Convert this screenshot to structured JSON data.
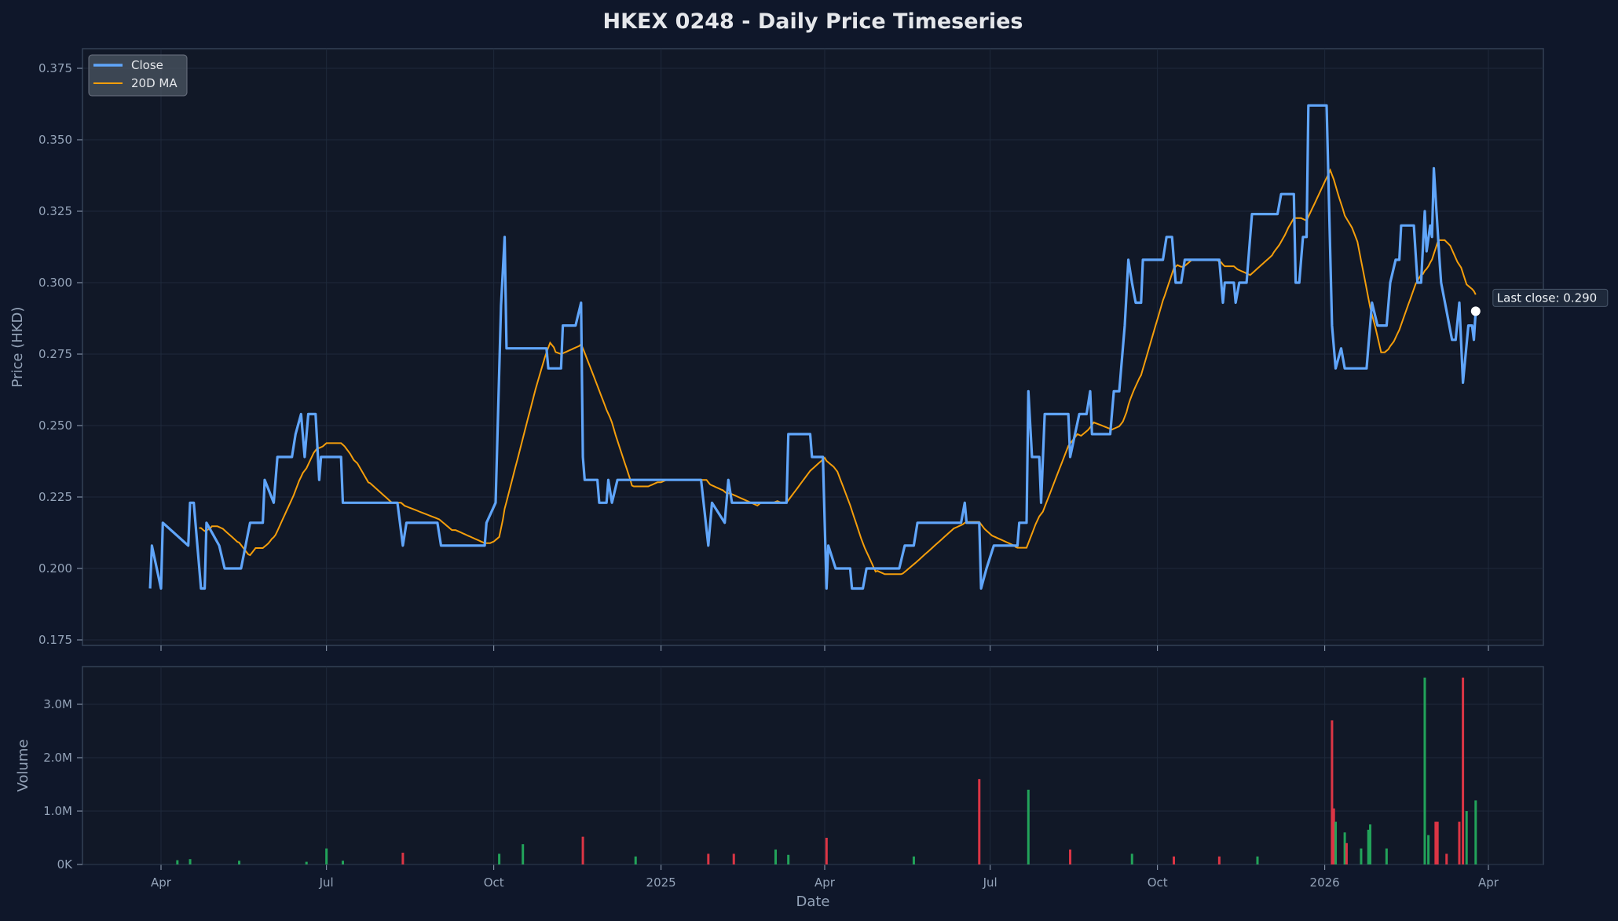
{
  "colors": {
    "background": "#0f172a",
    "plot_background": "#111827",
    "close": "#60a5fa",
    "ma": "#f59e0b",
    "up": "#22a35a",
    "down": "#dc3545",
    "grid": "#1e293b",
    "text": "#94a3b8"
  },
  "chart_data": [
    {
      "type": "line",
      "title": "HKEX 0248 - Daily Price Timeseries",
      "xlabel": "",
      "ylabel": "Price (HKD)",
      "ylim": [
        0.175,
        0.38
      ],
      "grid": true,
      "legend_position": "top-left",
      "yticks": [
        "0.175",
        "0.200",
        "0.225",
        "0.250",
        "0.275",
        "0.300",
        "0.325",
        "0.350",
        "0.375"
      ],
      "xticks": [
        {
          "date": "2024-04-01",
          "label": "Apr"
        },
        {
          "date": "2024-07-01",
          "label": "Jul"
        },
        {
          "date": "2024-10-01",
          "label": "Oct"
        },
        {
          "date": "2025-01-01",
          "label": "2025"
        },
        {
          "date": "2025-04-01",
          "label": "Apr"
        },
        {
          "date": "2025-07-01",
          "label": "Jul"
        },
        {
          "date": "2025-10-01",
          "label": "Oct"
        },
        {
          "date": "2026-01-01",
          "label": "2026"
        },
        {
          "date": "2026-04-01",
          "label": "Apr"
        }
      ],
      "series": [
        {
          "name": "Close",
          "points": [
            [
              "2024-03-26",
              0.193
            ],
            [
              "2024-03-27",
              0.208
            ],
            [
              "2024-04-01",
              0.193
            ],
            [
              "2024-04-02",
              0.216
            ],
            [
              "2024-04-16",
              0.208
            ],
            [
              "2024-04-17",
              0.223
            ],
            [
              "2024-04-19",
              0.223
            ],
            [
              "2024-04-23",
              0.193
            ],
            [
              "2024-04-25",
              0.193
            ],
            [
              "2024-04-26",
              0.216
            ],
            [
              "2024-05-03",
              0.208
            ],
            [
              "2024-05-06",
              0.2
            ],
            [
              "2024-05-15",
              0.2
            ],
            [
              "2024-05-20",
              0.216
            ],
            [
              "2024-05-27",
              0.216
            ],
            [
              "2024-05-28",
              0.231
            ],
            [
              "2024-06-02",
              0.223
            ],
            [
              "2024-06-04",
              0.239
            ],
            [
              "2024-06-12",
              0.239
            ],
            [
              "2024-06-14",
              0.247
            ],
            [
              "2024-06-17",
              0.254
            ],
            [
              "2024-06-19",
              0.239
            ],
            [
              "2024-06-21",
              0.254
            ],
            [
              "2024-06-25",
              0.254
            ],
            [
              "2024-06-27",
              0.231
            ],
            [
              "2024-06-28",
              0.239
            ],
            [
              "2024-07-09",
              0.239
            ],
            [
              "2024-07-10",
              0.223
            ],
            [
              "2024-08-09",
              0.223
            ],
            [
              "2024-08-12",
              0.208
            ],
            [
              "2024-08-14",
              0.216
            ],
            [
              "2024-08-31",
              0.216
            ],
            [
              "2024-09-02",
              0.208
            ],
            [
              "2024-09-26",
              0.208
            ],
            [
              "2024-09-27",
              0.216
            ],
            [
              "2024-10-02",
              0.223
            ],
            [
              "2024-10-05",
              0.292
            ],
            [
              "2024-10-07",
              0.316
            ],
            [
              "2024-10-08",
              0.277
            ],
            [
              "2024-10-30",
              0.277
            ],
            [
              "2024-10-31",
              0.27
            ],
            [
              "2024-11-07",
              0.27
            ],
            [
              "2024-11-08",
              0.285
            ],
            [
              "2024-11-15",
              0.285
            ],
            [
              "2024-11-18",
              0.293
            ],
            [
              "2024-11-19",
              0.239
            ],
            [
              "2024-11-20",
              0.231
            ],
            [
              "2024-11-27",
              0.231
            ],
            [
              "2024-11-28",
              0.223
            ],
            [
              "2024-12-02",
              0.223
            ],
            [
              "2024-12-03",
              0.231
            ],
            [
              "2024-12-05",
              0.223
            ],
            [
              "2024-12-08",
              0.231
            ],
            [
              "2025-01-23",
              0.231
            ],
            [
              "2025-01-27",
              0.208
            ],
            [
              "2025-01-29",
              0.223
            ],
            [
              "2025-02-05",
              0.216
            ],
            [
              "2025-02-07",
              0.231
            ],
            [
              "2025-02-09",
              0.223
            ],
            [
              "2025-03-11",
              0.223
            ],
            [
              "2025-03-12",
              0.247
            ],
            [
              "2025-03-24",
              0.247
            ],
            [
              "2025-03-25",
              0.239
            ],
            [
              "2025-03-31",
              0.239
            ],
            [
              "2025-04-02",
              0.193
            ],
            [
              "2025-04-03",
              0.208
            ],
            [
              "2025-04-07",
              0.2
            ],
            [
              "2025-04-15",
              0.2
            ],
            [
              "2025-04-16",
              0.193
            ],
            [
              "2025-04-22",
              0.193
            ],
            [
              "2025-04-24",
              0.2
            ],
            [
              "2025-05-12",
              0.2
            ],
            [
              "2025-05-15",
              0.208
            ],
            [
              "2025-05-20",
              0.208
            ],
            [
              "2025-05-22",
              0.216
            ],
            [
              "2025-06-15",
              0.216
            ],
            [
              "2025-06-17",
              0.223
            ],
            [
              "2025-06-18",
              0.216
            ],
            [
              "2025-06-25",
              0.216
            ],
            [
              "2025-06-26",
              0.193
            ],
            [
              "2025-06-29",
              0.2
            ],
            [
              "2025-07-03",
              0.208
            ],
            [
              "2025-07-16",
              0.208
            ],
            [
              "2025-07-17",
              0.216
            ],
            [
              "2025-07-21",
              0.216
            ],
            [
              "2025-07-22",
              0.262
            ],
            [
              "2025-07-24",
              0.239
            ],
            [
              "2025-07-28",
              0.239
            ],
            [
              "2025-07-29",
              0.223
            ],
            [
              "2025-07-31",
              0.254
            ],
            [
              "2025-08-13",
              0.254
            ],
            [
              "2025-08-14",
              0.239
            ],
            [
              "2025-08-19",
              0.254
            ],
            [
              "2025-08-23",
              0.254
            ],
            [
              "2025-08-25",
              0.262
            ],
            [
              "2025-08-26",
              0.247
            ],
            [
              "2025-09-05",
              0.247
            ],
            [
              "2025-09-07",
              0.262
            ],
            [
              "2025-09-10",
              0.262
            ],
            [
              "2025-09-13",
              0.285
            ],
            [
              "2025-09-15",
              0.308
            ],
            [
              "2025-09-17",
              0.3
            ],
            [
              "2025-09-19",
              0.293
            ],
            [
              "2025-09-22",
              0.293
            ],
            [
              "2025-09-23",
              0.308
            ],
            [
              "2025-10-04",
              0.308
            ],
            [
              "2025-10-06",
              0.316
            ],
            [
              "2025-10-09",
              0.316
            ],
            [
              "2025-10-11",
              0.3
            ],
            [
              "2025-10-14",
              0.3
            ],
            [
              "2025-10-16",
              0.308
            ],
            [
              "2025-11-04",
              0.308
            ],
            [
              "2025-11-06",
              0.293
            ],
            [
              "2025-11-07",
              0.3
            ],
            [
              "2025-11-12",
              0.3
            ],
            [
              "2025-11-13",
              0.293
            ],
            [
              "2025-11-15",
              0.3
            ],
            [
              "2025-11-19",
              0.3
            ],
            [
              "2025-11-22",
              0.324
            ],
            [
              "2025-12-06",
              0.324
            ],
            [
              "2025-12-08",
              0.331
            ],
            [
              "2025-12-15",
              0.331
            ],
            [
              "2025-12-16",
              0.3
            ],
            [
              "2025-12-18",
              0.3
            ],
            [
              "2025-12-20",
              0.316
            ],
            [
              "2025-12-22",
              0.316
            ],
            [
              "2025-12-23",
              0.362
            ],
            [
              "2026-01-02",
              0.362
            ],
            [
              "2026-01-05",
              0.285
            ],
            [
              "2026-01-07",
              0.27
            ],
            [
              "2026-01-10",
              0.277
            ],
            [
              "2026-01-12",
              0.27
            ],
            [
              "2026-01-24",
              0.27
            ],
            [
              "2026-01-27",
              0.293
            ],
            [
              "2026-01-30",
              0.285
            ],
            [
              "2026-02-04",
              0.285
            ],
            [
              "2026-02-06",
              0.3
            ],
            [
              "2026-02-09",
              0.308
            ],
            [
              "2026-02-11",
              0.308
            ],
            [
              "2026-02-12",
              0.32
            ],
            [
              "2026-02-19",
              0.32
            ],
            [
              "2026-02-21",
              0.3
            ],
            [
              "2026-02-23",
              0.3
            ],
            [
              "2026-02-25",
              0.325
            ],
            [
              "2026-02-26",
              0.311
            ],
            [
              "2026-02-28",
              0.32
            ],
            [
              "2026-03-01",
              0.316
            ],
            [
              "2026-03-02",
              0.34
            ],
            [
              "2026-03-05",
              0.309
            ],
            [
              "2026-03-06",
              0.3
            ],
            [
              "2026-03-09",
              0.29
            ],
            [
              "2026-03-12",
              0.28
            ],
            [
              "2026-03-14",
              0.28
            ],
            [
              "2026-03-16",
              0.293
            ],
            [
              "2026-03-18",
              0.265
            ],
            [
              "2026-03-21",
              0.285
            ],
            [
              "2026-03-23",
              0.285
            ],
            [
              "2026-03-24",
              0.28
            ],
            [
              "2026-03-25",
              0.29
            ]
          ]
        },
        {
          "name": "20D MA",
          "window": 20
        }
      ],
      "annotation": {
        "label": "Last close: 0.290",
        "date": "2026-03-25",
        "value": 0.29
      }
    },
    {
      "type": "bar",
      "xlabel": "Date",
      "ylabel": "Volume",
      "ylim": [
        0,
        3.7
      ],
      "unit": "M",
      "yticks": [
        {
          "value": 0,
          "label": "0K"
        },
        {
          "value": 1,
          "label": "1.0M"
        },
        {
          "value": 2,
          "label": "2.0M"
        },
        {
          "value": 3,
          "label": "3.0M"
        }
      ],
      "bars": [
        [
          "2024-04-10",
          0.08,
          "up"
        ],
        [
          "2024-04-17",
          0.1,
          "up"
        ],
        [
          "2024-05-14",
          0.07,
          "up"
        ],
        [
          "2024-06-20",
          0.05,
          "up"
        ],
        [
          "2024-07-01",
          0.3,
          "up"
        ],
        [
          "2024-07-10",
          0.07,
          "up"
        ],
        [
          "2024-08-12",
          0.22,
          "down"
        ],
        [
          "2024-10-04",
          0.2,
          "up"
        ],
        [
          "2024-10-17",
          0.38,
          "up"
        ],
        [
          "2024-11-19",
          0.52,
          "down"
        ],
        [
          "2024-12-18",
          0.15,
          "up"
        ],
        [
          "2025-01-27",
          0.2,
          "down"
        ],
        [
          "2025-02-10",
          0.2,
          "down"
        ],
        [
          "2025-03-05",
          0.28,
          "up"
        ],
        [
          "2025-03-12",
          0.18,
          "up"
        ],
        [
          "2025-04-02",
          0.5,
          "down"
        ],
        [
          "2025-05-20",
          0.15,
          "up"
        ],
        [
          "2025-06-25",
          1.6,
          "down"
        ],
        [
          "2025-07-22",
          1.4,
          "up"
        ],
        [
          "2025-08-14",
          0.28,
          "down"
        ],
        [
          "2025-09-17",
          0.2,
          "up"
        ],
        [
          "2025-10-10",
          0.15,
          "down"
        ],
        [
          "2025-11-04",
          0.15,
          "down"
        ],
        [
          "2025-11-25",
          0.15,
          "up"
        ],
        [
          "2026-01-05",
          2.7,
          "down"
        ],
        [
          "2026-01-06",
          1.05,
          "down"
        ],
        [
          "2026-01-07",
          0.8,
          "up"
        ],
        [
          "2026-01-12",
          0.6,
          "up"
        ],
        [
          "2026-01-13",
          0.4,
          "down"
        ],
        [
          "2026-01-21",
          0.3,
          "up"
        ],
        [
          "2026-01-25",
          0.65,
          "up"
        ],
        [
          "2026-01-26",
          0.75,
          "up"
        ],
        [
          "2026-02-04",
          0.3,
          "up"
        ],
        [
          "2026-02-25",
          3.5,
          "up"
        ],
        [
          "2026-02-27",
          0.55,
          "up"
        ],
        [
          "2026-03-03",
          0.8,
          "down"
        ],
        [
          "2026-03-04",
          0.8,
          "down"
        ],
        [
          "2026-03-09",
          0.2,
          "down"
        ],
        [
          "2026-03-16",
          0.8,
          "down"
        ],
        [
          "2026-03-18",
          3.5,
          "down"
        ],
        [
          "2026-03-20",
          1.0,
          "up"
        ],
        [
          "2026-03-25",
          1.2,
          "up"
        ]
      ]
    }
  ]
}
